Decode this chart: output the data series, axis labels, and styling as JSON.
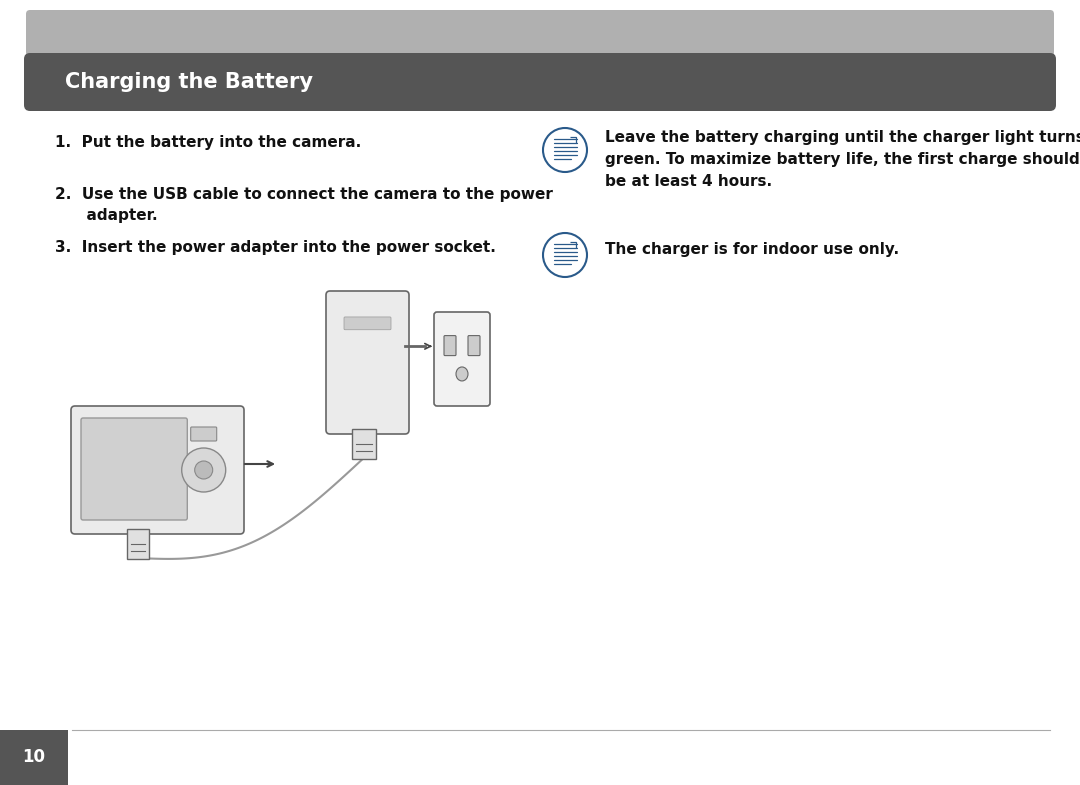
{
  "page_bg": "#ffffff",
  "top_bar_color": "#b0b0b0",
  "header_bg": "#555555",
  "header_text": "Charging the Battery",
  "header_text_color": "#ffffff",
  "header_font_size": 15,
  "steps": [
    "1.  Put the battery into the camera.",
    "2.  Use the USB cable to connect the camera to the power\n      adapter.",
    "3.  Insert the power adapter into the power socket."
  ],
  "note1_text": "Leave the battery charging until the charger light turns\ngreen. To maximize battery life, the first charge should\nbe at least 4 hours.",
  "note2_text": "The charger is for indoor use only.",
  "notes_font_size": 11,
  "steps_font_size": 11,
  "icon_color": "#2a5a8a",
  "footer_num": "10",
  "footer_bg": "#555555",
  "footer_text_color": "#ffffff",
  "footer_font_size": 12
}
